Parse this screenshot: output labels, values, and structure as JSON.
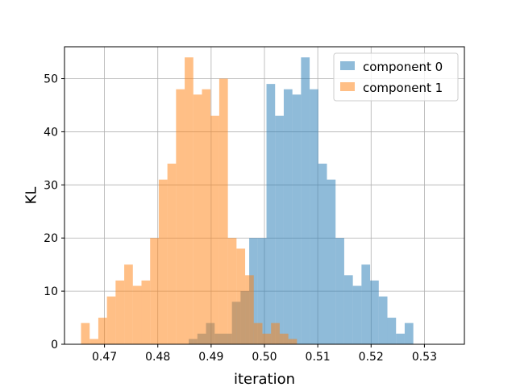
{
  "chart_data": {
    "type": "bar",
    "subtype": "overlapping-histogram",
    "title": "",
    "xlabel": "iteration",
    "ylabel": "KL",
    "xlim": [
      0.4625,
      0.5375
    ],
    "ylim": [
      0,
      56
    ],
    "grid": true,
    "legend_position": "top-right",
    "xticks": [
      0.47,
      0.48,
      0.49,
      0.5,
      0.51,
      0.52,
      0.53
    ],
    "xtick_labels": [
      "0.47",
      "0.48",
      "0.49",
      "0.50",
      "0.51",
      "0.52",
      "0.53"
    ],
    "yticks": [
      0,
      10,
      20,
      30,
      40,
      50
    ],
    "ytick_labels": [
      "0",
      "10",
      "20",
      "30",
      "40",
      "50"
    ],
    "series": [
      {
        "name": "component 0",
        "color": "#1f77b4",
        "opacity": 0.5,
        "bin_start": 0.4858,
        "bin_width": 0.00162,
        "counts": [
          1,
          2,
          4,
          2,
          2,
          8,
          10,
          20,
          20,
          49,
          43,
          48,
          47,
          54,
          48,
          34,
          31,
          20,
          13,
          11,
          15,
          12,
          9,
          5,
          2,
          4
        ]
      },
      {
        "name": "component 1",
        "color": "#ff7f0e",
        "opacity": 0.5,
        "bin_start": 0.4656,
        "bin_width": 0.00162,
        "counts": [
          4,
          1,
          5,
          9,
          12,
          15,
          11,
          12,
          20,
          31,
          34,
          48,
          54,
          47,
          48,
          43,
          50,
          20,
          18,
          13,
          4,
          2,
          4,
          2,
          1
        ]
      }
    ]
  }
}
